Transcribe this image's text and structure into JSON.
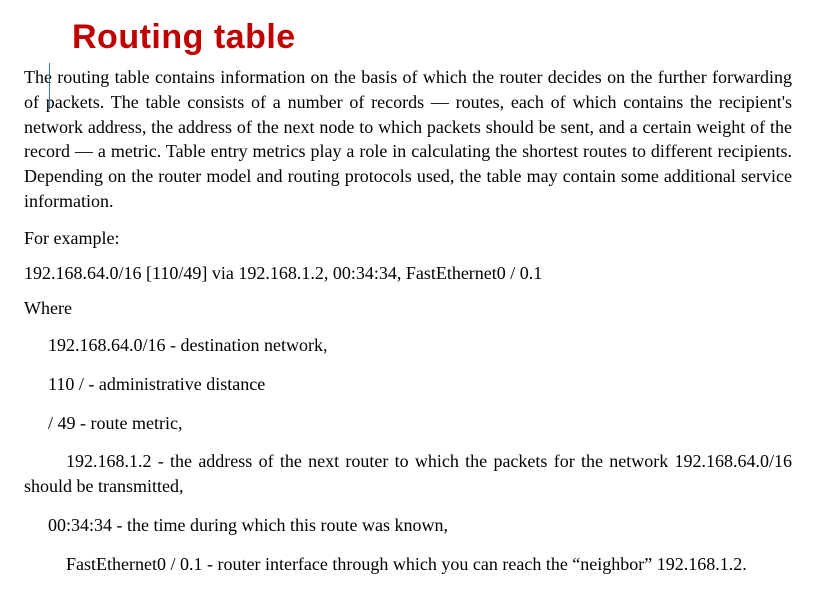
{
  "title": "Routing table",
  "intro": "The routing table contains information on the basis of which the router decides on the further forwarding of packets. The table consists of a number of records — routes, each of which contains the recipient's network address, the address of the next node to which packets should be sent, and a certain weight of the record — a metric. Table entry metrics play a role in calculating the shortest routes to different recipients. Depending on the router model and routing protocols used, the table may contain some additional service information.",
  "for_example_label": "For example:",
  "route_example": "192.168.64.0/16 [110/49] via 192.168.1.2, 00:34:34, FastEthernet0 / 0.1",
  "where_label": "Where",
  "items": [
    "192.168.64.0/16 - destination network,",
    "110 / - administrative distance",
    "/ 49 - route metric,",
    "192.168.1.2 - the address of the next router to which the packets for the network 192.168.64.0/16 should be transmitted,",
    "00:34:34 - the time during which this route was known,",
    "FastEthernet0 / 0.1 - router interface through which you can reach the “neighbor” 192.168.1.2."
  ]
}
